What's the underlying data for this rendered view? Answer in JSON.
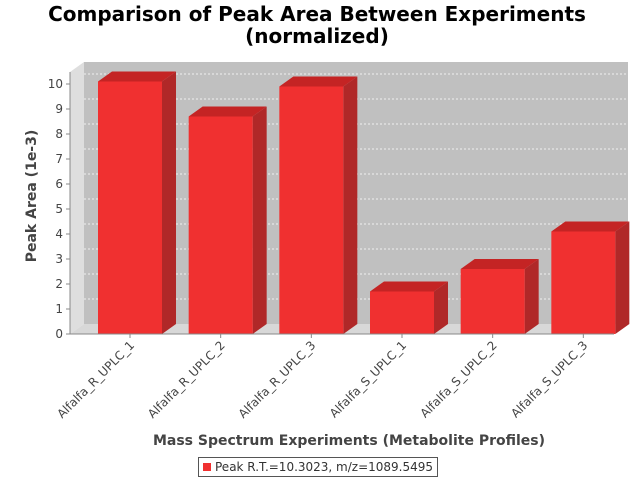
{
  "chart_data": {
    "type": "bar",
    "title_lines": [
      "Comparison of Peak Area Between Experiments",
      "(normalized)"
    ],
    "xlabel": "Mass Spectrum Experiments (Metabolite Profiles)",
    "ylabel": "Peak Area (1e-3)",
    "categories": [
      "Alfalfa_R_UPLC_1",
      "Alfalfa_R_UPLC_2",
      "Alfalfa_R_UPLC_3",
      "Alfalfa_S_UPLC_1",
      "Alfalfa_S_UPLC_2",
      "Alfalfa_S_UPLC_3"
    ],
    "series": [
      {
        "name": "Peak R.T.=10.3023, m/z=1089.5495",
        "values": [
          10.1,
          8.7,
          9.9,
          1.7,
          2.6,
          4.1
        ]
      }
    ],
    "yticks": [
      0,
      1,
      2,
      3,
      4,
      5,
      6,
      7,
      8,
      9,
      10
    ],
    "ylim": [
      0,
      10.5
    ],
    "grid": true,
    "legend_position": "bottom-center",
    "colors": {
      "bar_front": "#f03030",
      "bar_top": "#c42424",
      "bar_side": "#b02828",
      "plot_back": "#c0c0c0",
      "plot_floor": "#d8d8d8"
    }
  }
}
